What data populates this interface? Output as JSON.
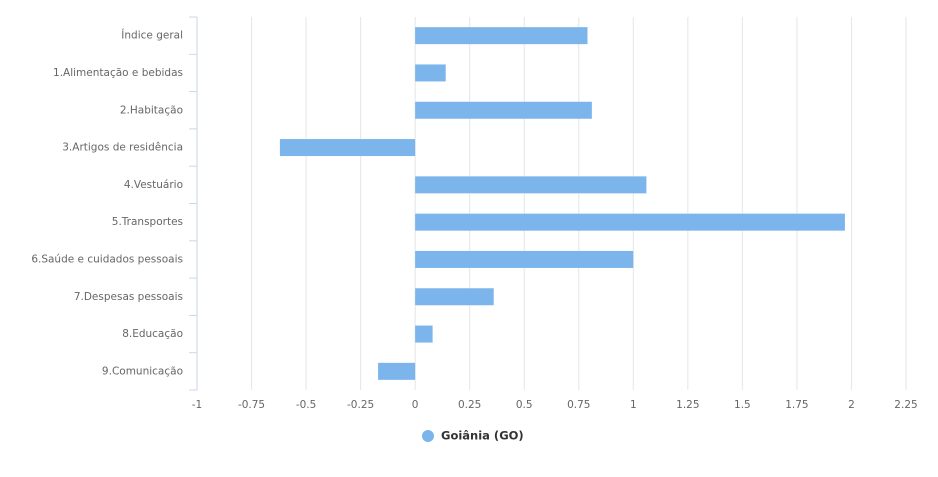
{
  "chart_data": {
    "type": "bar",
    "orientation": "horizontal",
    "categories": [
      "Índice geral",
      "1.Alimentação e bebidas",
      "2.Habitação",
      "3.Artigos de residência",
      "4.Vestuário",
      "5.Transportes",
      "6.Saúde e cuidados pessoais",
      "7.Despesas pessoais",
      "8.Educação",
      "9.Comunicação"
    ],
    "series": [
      {
        "name": "Goiânia (GO)",
        "color": "#7cb5ec",
        "values": [
          0.79,
          0.14,
          0.81,
          -0.62,
          1.06,
          1.97,
          1.0,
          0.36,
          0.08,
          -0.17
        ]
      }
    ],
    "xlim": [
      -1,
      2.25
    ],
    "xticks": [
      -1,
      -0.75,
      -0.5,
      -0.25,
      0,
      0.25,
      0.5,
      0.75,
      1,
      1.25,
      1.5,
      1.75,
      2,
      2.25
    ],
    "grid": true,
    "legend": "bottom"
  }
}
